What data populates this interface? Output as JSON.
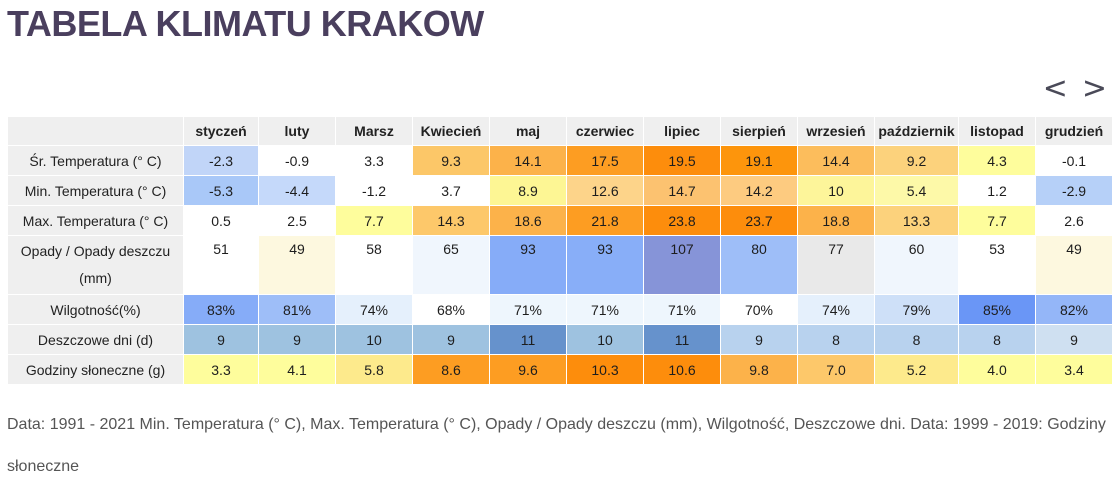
{
  "page": {
    "title": "TABELA KLIMATU KRAKOW",
    "nav_prev": "<",
    "nav_next": ">",
    "footer": "Data: 1991 - 2021 Min. Temperatura (° C), Max. Temperatura (° C), Opady / Opady deszczu (mm), Wilgotność, Deszczowe dni. Data: 1999 - 2019: Godziny słoneczne"
  },
  "table": {
    "months": [
      "styczeń",
      "luty",
      "Marsz",
      "Kwiecień",
      "maj",
      "czerwiec",
      "lipiec",
      "sierpień",
      "wrzesień",
      "październik",
      "listopad",
      "grudzień"
    ],
    "rows": [
      {
        "label": "Śr. Temperatura (° C)",
        "values": [
          "-2.3",
          "-0.9",
          "3.3",
          "9.3",
          "14.1",
          "17.5",
          "19.5",
          "19.1",
          "14.4",
          "9.2",
          "4.3",
          "-0.1"
        ],
        "colors": [
          "#c1d5f8",
          "#ffffff",
          "#ffffff",
          "#fcc768",
          "#fcb24a",
          "#fd9d22",
          "#fd8d0c",
          "#fd950c",
          "#fcbd5c",
          "#fcd27c",
          "#fefd9c",
          "#ffffff"
        ]
      },
      {
        "label": "Min. Temperatura (° C)",
        "values": [
          "-5.3",
          "-4.4",
          "-1.2",
          "3.7",
          "8.9",
          "12.6",
          "14.7",
          "14.2",
          "10",
          "5.4",
          "1.2",
          "-2.9"
        ],
        "colors": [
          "#a9c8f8",
          "#c5d9fa",
          "#ffffff",
          "#ffffff",
          "#fdf694",
          "#fdd48a",
          "#fcc270",
          "#fdcb80",
          "#fdf59a",
          "#fdf9a8",
          "#ffffff",
          "#b6d0f8"
        ]
      },
      {
        "label": "Max. Temperatura (° C)",
        "values": [
          "0.5",
          "2.5",
          "7.7",
          "14.3",
          "18.6",
          "21.8",
          "23.8",
          "23.7",
          "18.8",
          "13.3",
          "7.7",
          "2.6"
        ],
        "colors": [
          "#ffffff",
          "#ffffff",
          "#fefd9c",
          "#fdc86a",
          "#fcb24a",
          "#fd9d22",
          "#fd8d0c",
          "#fd8d0c",
          "#fcb24a",
          "#fcd27c",
          "#fefd9c",
          "#ffffff"
        ]
      },
      {
        "label": "Opady / Opady deszczu (mm)",
        "values": [
          "51",
          "49",
          "58",
          "65",
          "93",
          "93",
          "107",
          "80",
          "77",
          "60",
          "53",
          "49"
        ],
        "colors": [
          "#ffffff",
          "#fdf8df",
          "#ffffff",
          "#f0f6fd",
          "#86acf8",
          "#88aef8",
          "#8694d8",
          "#9ebef8",
          "#e9e9e9",
          "#f0f6fd",
          "#ffffff",
          "#fdf8df"
        ]
      },
      {
        "label": "Wilgotność(%)",
        "values": [
          "83%",
          "81%",
          "74%",
          "68%",
          "71%",
          "71%",
          "71%",
          "70%",
          "74%",
          "79%",
          "85%",
          "82%"
        ],
        "colors": [
          "#86acf8",
          "#9ebef8",
          "#e5f0fc",
          "#ffffff",
          "#eef6fd",
          "#eef6fd",
          "#eef6fd",
          "#ffffff",
          "#e5f0fc",
          "#cee0f8",
          "#6a96f6",
          "#94b6f8"
        ]
      },
      {
        "label": "Deszczowe dni (d)",
        "values": [
          "9",
          "9",
          "10",
          "9",
          "11",
          "10",
          "11",
          "9",
          "8",
          "8",
          "8",
          "9"
        ],
        "colors": [
          "#9ec2e0",
          "#9ec2e0",
          "#9ec2e0",
          "#9ec2e0",
          "#6692cc",
          "#9ec2e0",
          "#6692cc",
          "#b8d2ee",
          "#b8d2ee",
          "#b8d2ee",
          "#b8d2ee",
          "#cfe0f1"
        ]
      },
      {
        "label": "Godziny słoneczne (g)",
        "values": [
          "3.3",
          "4.1",
          "5.8",
          "8.6",
          "9.6",
          "10.3",
          "10.6",
          "9.8",
          "7.0",
          "5.2",
          "4.0",
          "3.4"
        ],
        "colors": [
          "#fefd9c",
          "#fefd9c",
          "#fdea8c",
          "#fd9d22",
          "#fd9d22",
          "#fd8d0c",
          "#fd8d0c",
          "#fcb24a",
          "#fdc86a",
          "#fdea8c",
          "#fefd9c",
          "#fefd9c"
        ]
      }
    ]
  }
}
